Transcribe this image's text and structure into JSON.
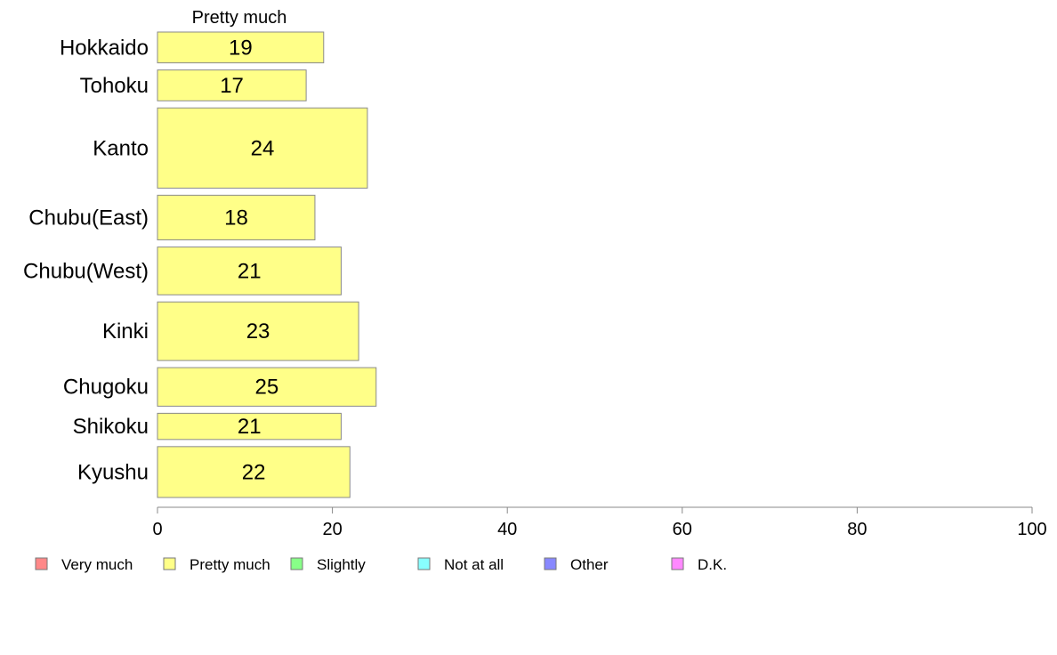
{
  "chart_data": {
    "type": "bar",
    "orientation": "horizontal",
    "stacked": true,
    "series_title": "Pretty much",
    "categories": [
      "Hokkaido",
      "Tohoku",
      "Kanto",
      "Chubu(East)",
      "Chubu(West)",
      "Kinki",
      "Chugoku",
      "Shikoku",
      "Kyushu"
    ],
    "relative_bar_widths": [
      1,
      1,
      2.6,
      1.45,
      1.55,
      1.9,
      1.25,
      0.85,
      1.65
    ],
    "series": [
      {
        "name": "Pretty much",
        "color": "#ffff88",
        "values": [
          19,
          17,
          24,
          18,
          21,
          23,
          25,
          21,
          22
        ]
      }
    ],
    "xlim": [
      0,
      100
    ],
    "xticks": [
      0,
      20,
      40,
      60,
      80,
      100
    ],
    "legend": {
      "position": "bottom",
      "items": [
        {
          "label": "Very much",
          "color": "#ff8888"
        },
        {
          "label": "Pretty much",
          "color": "#ffff88"
        },
        {
          "label": "Slightly",
          "color": "#88ff88"
        },
        {
          "label": "Not at all",
          "color": "#88ffff"
        },
        {
          "label": "Other",
          "color": "#8888ff"
        },
        {
          "label": "D.K.",
          "color": "#ff88ff"
        }
      ]
    },
    "grid": false
  }
}
